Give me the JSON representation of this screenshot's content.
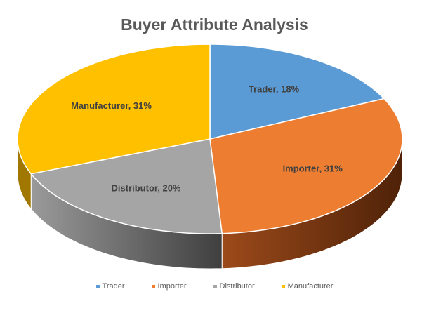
{
  "chart_data": {
    "type": "pie",
    "title": "Buyer Attribute Analysis",
    "slices": [
      {
        "name": "Trader",
        "value": 18,
        "label": "Trader, 18%",
        "color": "#5B9BD5",
        "side_color": "#35618C"
      },
      {
        "name": "Importer",
        "value": 31,
        "label": "Importer, 31%",
        "color": "#ED7D31",
        "side_color": "#6E3310"
      },
      {
        "name": "Distributor",
        "value": 20,
        "label": "Distributor, 20%",
        "color": "#A5A5A5",
        "side_color": "#5A5A5A"
      },
      {
        "name": "Manufacturer",
        "value": 31,
        "label": "Manufacturer, 31%",
        "color": "#FFC000",
        "side_color": "#A07800"
      }
    ],
    "legend": {
      "position": "bottom",
      "entries": [
        "Trader",
        "Importer",
        "Distributor",
        "Manufacturer"
      ]
    }
  }
}
